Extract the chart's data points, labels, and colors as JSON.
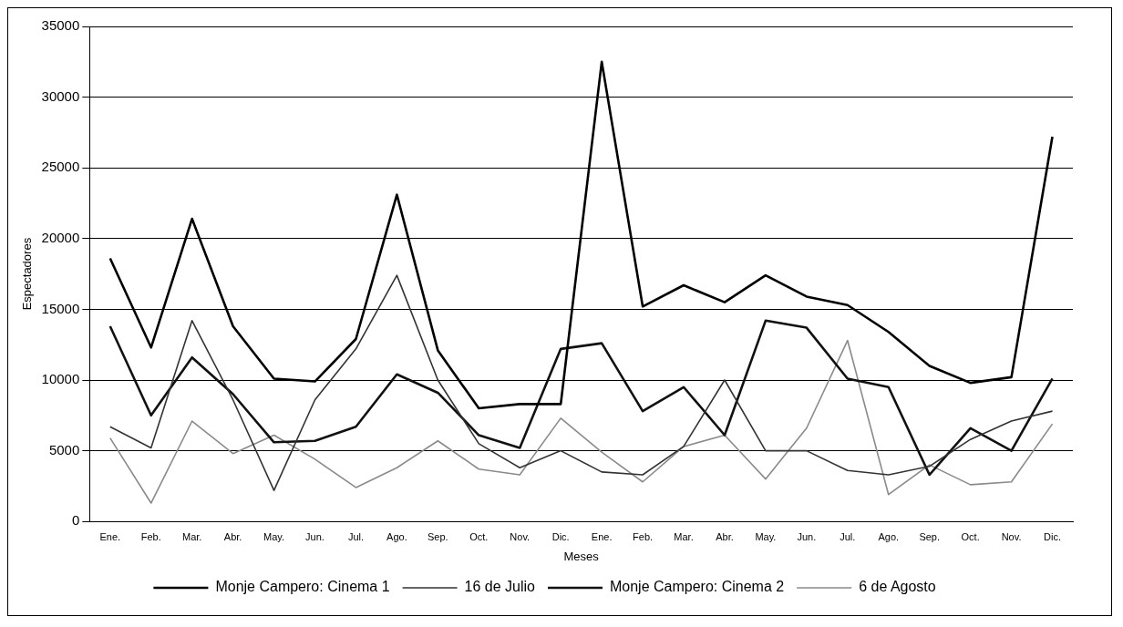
{
  "chart_data": {
    "type": "line",
    "xlabel": "Meses",
    "ylabel": "Espectadores",
    "categories": [
      "Ene.",
      "Feb.",
      "Mar.",
      "Abr.",
      "May.",
      "Jun.",
      "Jul.",
      "Ago.",
      "Sep.",
      "Oct.",
      "Nov.",
      "Dic.",
      "Ene.",
      "Feb.",
      "Mar.",
      "Abr.",
      "May.",
      "Jun.",
      "Jul.",
      "Ago.",
      "Sep.",
      "Oct.",
      "Nov.",
      "Dic."
    ],
    "series": [
      {
        "name": "Monje Campero: Cinema 1",
        "color": "#000000",
        "values": [
          18600,
          12300,
          21400,
          13800,
          10100,
          9900,
          12900,
          23100,
          12100,
          8000,
          8300,
          8300,
          32500,
          15200,
          16700,
          15500,
          17400,
          15900,
          15300,
          13400,
          11000,
          9800,
          10200,
          27200
        ]
      },
      {
        "name": "16 de Julio",
        "color": "#333333",
        "values": [
          6700,
          5200,
          14200,
          8600,
          2200,
          8600,
          12200,
          17400,
          10000,
          5500,
          3800,
          5000,
          3500,
          3300,
          5300,
          10000,
          5000,
          5000,
          3600,
          3300,
          3900,
          5800,
          7100,
          7800
        ]
      },
      {
        "name": "Monje Campero: Cinema 2",
        "color": "#111111",
        "values": [
          13800,
          7500,
          11600,
          9000,
          5600,
          5700,
          6700,
          10400,
          9100,
          6100,
          5200,
          12200,
          12600,
          7800,
          9500,
          6100,
          14200,
          13700,
          10100,
          9500,
          3300,
          6600,
          5000,
          10100
        ]
      },
      {
        "name": "6 de Agosto",
        "color": "#8a8a8a",
        "values": [
          5900,
          1300,
          7100,
          4800,
          6100,
          4400,
          2400,
          3800,
          5700,
          3700,
          3300,
          7300,
          4900,
          2800,
          5300,
          6100,
          3000,
          6600,
          12800,
          1900,
          4000,
          2600,
          2800,
          6900
        ]
      }
    ],
    "ylim": [
      0,
      35000
    ],
    "yticks": [
      0,
      5000,
      10000,
      15000,
      20000,
      25000,
      30000,
      35000
    ],
    "grid": "y",
    "legend": "bottom",
    "marker": "none",
    "line_style": "solid"
  }
}
